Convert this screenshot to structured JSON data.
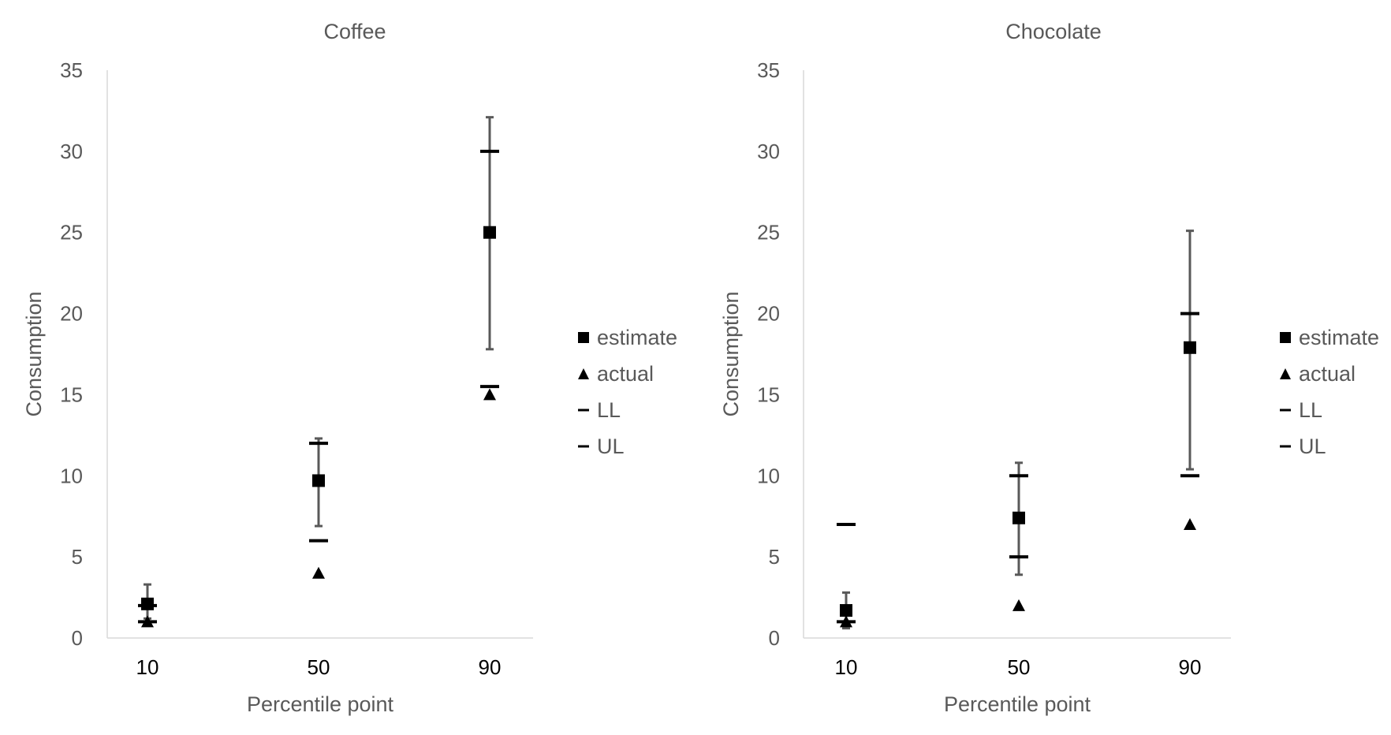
{
  "chart_data": [
    {
      "type": "scatter",
      "title": "Coffee",
      "xlabel": "Percentile point",
      "ylabel": "Consumption",
      "categories": [
        "10",
        "50",
        "90"
      ],
      "ylim": [
        0,
        35
      ],
      "yticks": [
        0,
        5,
        10,
        15,
        20,
        25,
        30,
        35
      ],
      "grid": false,
      "legend_position": "right",
      "series": [
        {
          "name": "estimate",
          "marker": "square",
          "values": [
            2.1,
            9.7,
            25
          ],
          "error_low": [
            1.2,
            6.9,
            17.8
          ],
          "error_high": [
            3.3,
            12.3,
            32.1
          ]
        },
        {
          "name": "actual",
          "marker": "triangle",
          "values": [
            1.0,
            4.0,
            15.0
          ]
        },
        {
          "name": "LL",
          "marker": "dash",
          "values": [
            1.0,
            6.0,
            15.5
          ]
        },
        {
          "name": "UL",
          "marker": "dash",
          "values": [
            2.0,
            12.0,
            30.0
          ]
        }
      ]
    },
    {
      "type": "scatter",
      "title": "Chocolate",
      "xlabel": "Percentile point",
      "ylabel": "Consumption",
      "categories": [
        "10",
        "50",
        "90"
      ],
      "ylim": [
        0,
        35
      ],
      "yticks": [
        0,
        5,
        10,
        15,
        20,
        25,
        30,
        35
      ],
      "grid": false,
      "legend_position": "right",
      "series": [
        {
          "name": "estimate",
          "marker": "square",
          "values": [
            1.7,
            7.4,
            17.9
          ],
          "error_low": [
            0.6,
            3.9,
            10.4
          ],
          "error_high": [
            2.8,
            10.8,
            25.1
          ]
        },
        {
          "name": "actual",
          "marker": "triangle",
          "values": [
            1.0,
            2.0,
            7.0
          ]
        },
        {
          "name": "LL",
          "marker": "dash",
          "values": [
            1.0,
            5.0,
            10.0
          ]
        },
        {
          "name": "UL",
          "marker": "dash",
          "values": [
            7.0,
            10.0,
            20.0
          ]
        }
      ]
    }
  ]
}
